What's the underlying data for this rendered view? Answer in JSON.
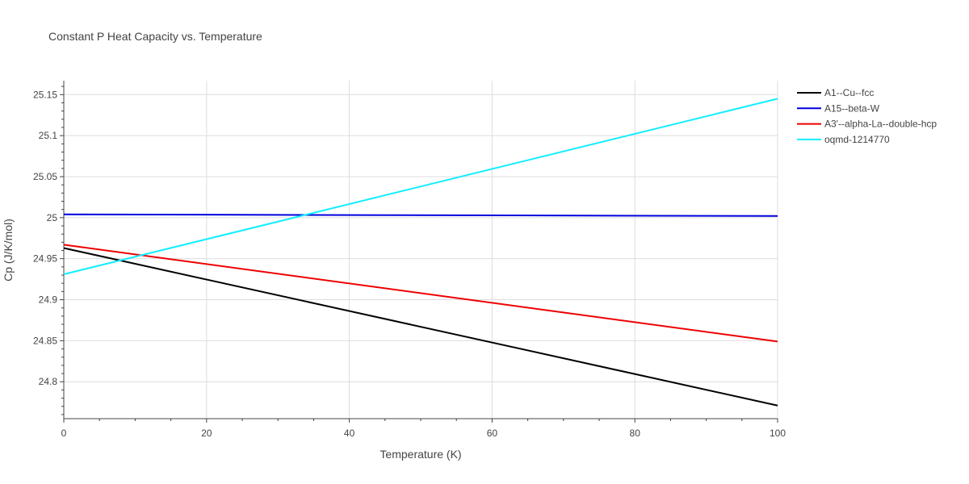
{
  "chart_data": {
    "type": "line",
    "title": "Constant P Heat Capacity vs. Temperature",
    "xlabel": "Temperature (K)",
    "ylabel": "Cp (J/K/mol)",
    "xlim": [
      0,
      100
    ],
    "ylim": [
      24.755,
      25.167
    ],
    "x_ticks": [
      0,
      20,
      40,
      60,
      80,
      100
    ],
    "y_ticks": [
      24.8,
      24.85,
      24.9,
      24.95,
      25,
      25.05,
      25.1,
      25.15
    ],
    "grid": true,
    "legend_position": "top-right",
    "series": [
      {
        "name": "A1--Cu--fcc",
        "color": "#000000",
        "x": [
          0,
          100
        ],
        "y": [
          24.963,
          24.771
        ]
      },
      {
        "name": "A15--beta-W",
        "color": "#0000dd",
        "x": [
          0,
          100
        ],
        "y": [
          25.004,
          25.002
        ]
      },
      {
        "name": "A3'--alpha-La--double-hcp",
        "color": "#ee0000",
        "x": [
          0,
          100
        ],
        "y": [
          24.967,
          24.849
        ]
      },
      {
        "name": "oqmd-1214770",
        "color": "#11eeff",
        "x": [
          0,
          100
        ],
        "y": [
          24.931,
          25.145
        ]
      }
    ]
  }
}
